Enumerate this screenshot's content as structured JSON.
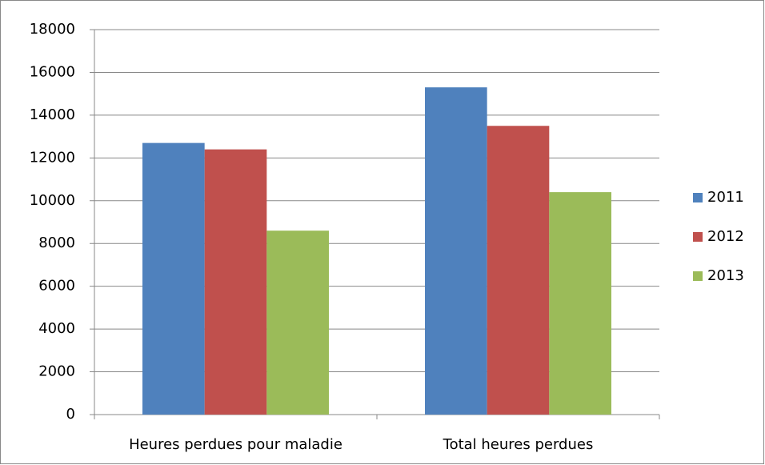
{
  "chart_data": {
    "type": "bar",
    "categories": [
      "Heures perdues pour maladie",
      "Total heures perdues"
    ],
    "series": [
      {
        "name": "2011",
        "color": "#4f81bd",
        "values": [
          12700,
          15300
        ]
      },
      {
        "name": "2012",
        "color": "#c0504d",
        "values": [
          12400,
          13500
        ]
      },
      {
        "name": "2013",
        "color": "#9bbb59",
        "values": [
          8600,
          10400
        ]
      }
    ],
    "ylim": [
      0,
      18000
    ],
    "yticks": [
      0,
      2000,
      4000,
      6000,
      8000,
      10000,
      12000,
      14000,
      16000,
      18000
    ],
    "grid": true,
    "legend": "right"
  }
}
